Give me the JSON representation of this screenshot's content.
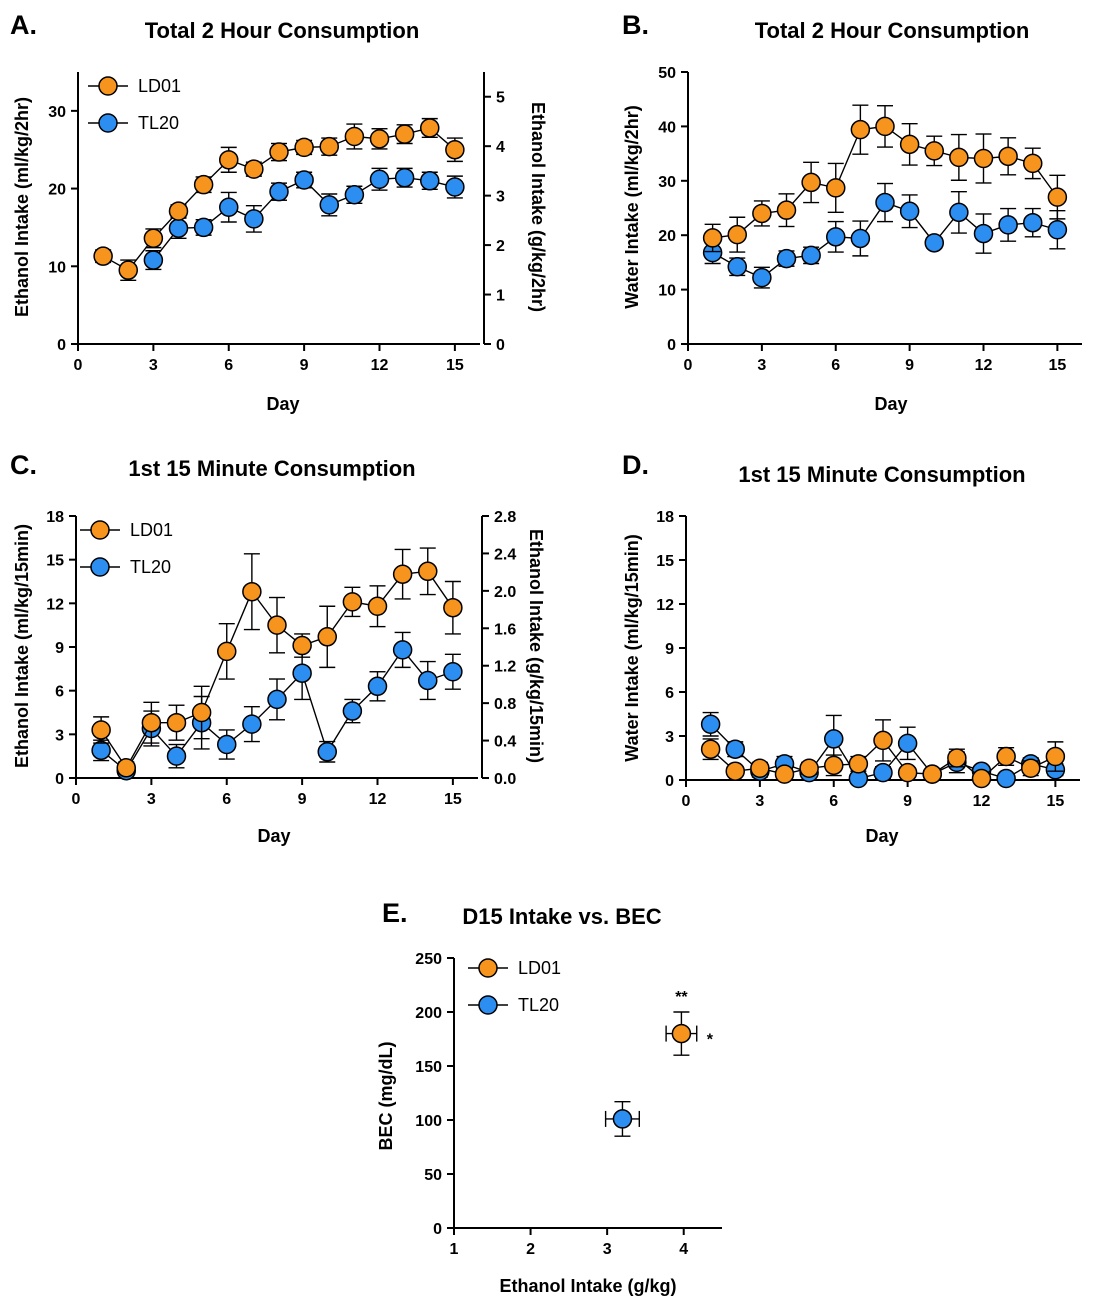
{
  "colors": {
    "ld01": "#f7941d",
    "tl20": "#2b8ef0",
    "line": "#000000"
  },
  "chart_data": [
    {
      "panel": "A.",
      "type": "line",
      "title": "Total 2 Hour Consumption",
      "xlabel": "Day",
      "ylabel": "Ethanol Intake (ml/kg/2hr)",
      "ylabel_right": "Ethanol Intake (g/kg/2hr)",
      "xlim": [
        0,
        16
      ],
      "ylim": [
        0,
        35
      ],
      "ylim_right": [
        0,
        5.5
      ],
      "xticks": [
        "0",
        "3",
        "6",
        "9",
        "12",
        "15"
      ],
      "yticks": [
        "0",
        "10",
        "20",
        "30"
      ],
      "yticks_right": [
        "0",
        "1",
        "2",
        "3",
        "4",
        "5"
      ],
      "legend": [
        "LD01",
        "TL20"
      ],
      "legend_position": "top-left",
      "x": [
        1,
        2,
        3,
        4,
        5,
        6,
        7,
        8,
        9,
        10,
        11,
        12,
        13,
        14,
        15
      ],
      "series": [
        {
          "name": "LD01",
          "values": [
            11.3,
            9.5,
            13.6,
            17.1,
            20.5,
            23.7,
            22.5,
            24.7,
            25.3,
            25.4,
            26.7,
            26.4,
            27.0,
            27.8,
            25.0
          ],
          "err": [
            0.8,
            1.3,
            1.2,
            0.8,
            1.0,
            1.6,
            0.9,
            1.1,
            0.9,
            1.1,
            1.6,
            1.3,
            1.2,
            1.2,
            1.5
          ]
        },
        {
          "name": "TL20",
          "values": [
            null,
            null,
            10.8,
            14.9,
            15.0,
            17.6,
            16.1,
            19.6,
            21.1,
            17.9,
            19.2,
            21.2,
            21.4,
            21.0,
            20.2
          ],
          "err": [
            0,
            0,
            1.2,
            1.3,
            1.0,
            1.9,
            1.7,
            1.1,
            1.0,
            1.4,
            1.1,
            1.4,
            1.2,
            1.1,
            1.4
          ]
        }
      ]
    },
    {
      "panel": "B.",
      "type": "line",
      "title": "Total 2 Hour Consumption",
      "xlabel": "Day",
      "ylabel": "Water Intake (ml/kg/2hr)",
      "xlim": [
        0,
        16
      ],
      "ylim": [
        0,
        50
      ],
      "xticks": [
        "0",
        "3",
        "6",
        "9",
        "12",
        "15"
      ],
      "yticks": [
        "0",
        "10",
        "20",
        "30",
        "40",
        "50"
      ],
      "x": [
        1,
        2,
        3,
        4,
        5,
        6,
        7,
        8,
        9,
        10,
        11,
        12,
        13,
        14,
        15
      ],
      "series": [
        {
          "name": "LD01",
          "values": [
            19.5,
            20.1,
            24.0,
            24.6,
            29.7,
            28.7,
            39.4,
            40.0,
            36.7,
            35.5,
            34.3,
            34.1,
            34.5,
            33.2,
            27.0
          ],
          "err": [
            2.5,
            3.2,
            2.3,
            3.0,
            3.7,
            4.5,
            4.5,
            3.8,
            3.8,
            2.7,
            4.2,
            4.5,
            3.4,
            2.8,
            4.0
          ]
        },
        {
          "name": "TL20",
          "values": [
            16.8,
            14.2,
            12.2,
            15.7,
            16.3,
            19.7,
            19.4,
            26.0,
            24.4,
            18.6,
            24.2,
            20.3,
            21.9,
            22.3,
            21.0
          ],
          "err": [
            2.0,
            1.6,
            1.9,
            1.4,
            1.5,
            2.8,
            3.2,
            3.5,
            3.0,
            0.9,
            3.8,
            3.6,
            3.0,
            2.6,
            3.5
          ]
        }
      ]
    },
    {
      "panel": "C.",
      "type": "line",
      "title": "1st 15 Minute Consumption",
      "xlabel": "Day",
      "ylabel": "Ethanol Intake (ml/kg/15min)",
      "ylabel_right": "Ethanol Intake (g/kg/15min)",
      "xlim": [
        0,
        16
      ],
      "ylim": [
        0,
        18
      ],
      "ylim_right": [
        0,
        2.8
      ],
      "xticks": [
        "0",
        "3",
        "6",
        "9",
        "12",
        "15"
      ],
      "yticks": [
        "0",
        "3",
        "6",
        "9",
        "12",
        "15",
        "18"
      ],
      "yticks_right": [
        "0.0",
        "0.4",
        "0.8",
        "1.2",
        "1.6",
        "2.0",
        "2.4",
        "2.8"
      ],
      "legend": [
        "LD01",
        "TL20"
      ],
      "legend_position": "top-left",
      "x": [
        1,
        2,
        3,
        4,
        5,
        6,
        7,
        8,
        9,
        10,
        11,
        12,
        13,
        14,
        15
      ],
      "series": [
        {
          "name": "LD01",
          "values": [
            3.3,
            0.7,
            3.8,
            3.8,
            4.5,
            8.7,
            12.8,
            10.5,
            9.1,
            9.7,
            12.1,
            11.8,
            14.0,
            14.2,
            11.7
          ],
          "err": [
            0.9,
            0.4,
            1.4,
            1.2,
            1.8,
            1.9,
            2.6,
            1.9,
            0.8,
            2.1,
            1.0,
            1.4,
            1.7,
            1.6,
            1.8
          ]
        },
        {
          "name": "TL20",
          "values": [
            1.9,
            0.5,
            3.4,
            1.5,
            3.8,
            2.3,
            3.7,
            5.4,
            7.2,
            1.8,
            4.6,
            6.3,
            8.8,
            6.7,
            7.3
          ],
          "err": [
            0.7,
            0.2,
            1.2,
            0.8,
            1.8,
            1.0,
            1.2,
            1.4,
            1.8,
            0.7,
            0.8,
            1.0,
            1.2,
            1.3,
            1.2
          ]
        }
      ]
    },
    {
      "panel": "D.",
      "type": "line",
      "title": "1st 15 Minute Consumption",
      "xlabel": "Day",
      "ylabel": "Water Intake (ml/kg/15min)",
      "xlim": [
        0,
        16
      ],
      "ylim": [
        0,
        18
      ],
      "xticks": [
        "0",
        "3",
        "6",
        "9",
        "12",
        "15"
      ],
      "yticks": [
        "0",
        "3",
        "6",
        "9",
        "12",
        "15",
        "18"
      ],
      "x": [
        1,
        2,
        3,
        4,
        5,
        6,
        7,
        8,
        9,
        10,
        11,
        12,
        13,
        14,
        15
      ],
      "series": [
        {
          "name": "LD01",
          "values": [
            2.1,
            0.6,
            0.8,
            0.4,
            0.8,
            1.0,
            1.1,
            2.7,
            0.5,
            0.4,
            1.5,
            0.1,
            1.6,
            0.8,
            1.6
          ],
          "err": [
            0.7,
            0.3,
            0.4,
            0.3,
            0.4,
            0.7,
            0.5,
            1.4,
            0.3,
            0.2,
            0.6,
            0.1,
            0.6,
            0.5,
            1.0
          ]
        },
        {
          "name": "TL20",
          "values": [
            3.8,
            2.1,
            0.6,
            1.1,
            0.5,
            2.8,
            0.1,
            0.5,
            2.5,
            0.4,
            1.2,
            0.6,
            0.1,
            1.1,
            0.7
          ],
          "err": [
            0.8,
            0.5,
            0.4,
            0.5,
            0.3,
            1.6,
            0.1,
            0.4,
            1.1,
            0.2,
            0.7,
            0.3,
            0.1,
            0.4,
            0.4
          ]
        }
      ]
    },
    {
      "panel": "E.",
      "type": "scatter",
      "title": "D15 Intake vs. BEC",
      "xlabel": "Ethanol Intake (g/kg)",
      "ylabel": "BEC (mg/dL)",
      "xlim": [
        1,
        4.5
      ],
      "ylim": [
        0,
        250
      ],
      "xticks": [
        "1",
        "2",
        "3",
        "4"
      ],
      "yticks": [
        "0",
        "50",
        "100",
        "150",
        "200",
        "250"
      ],
      "legend": [
        "LD01",
        "TL20"
      ],
      "legend_position": "top-left",
      "series": [
        {
          "name": "LD01",
          "x": 3.97,
          "y": 180,
          "xerr": 0.2,
          "yerr": 20
        },
        {
          "name": "TL20",
          "x": 3.2,
          "y": 101,
          "xerr": 0.22,
          "yerr": 16
        }
      ],
      "annotations": [
        "**",
        "*"
      ]
    }
  ]
}
